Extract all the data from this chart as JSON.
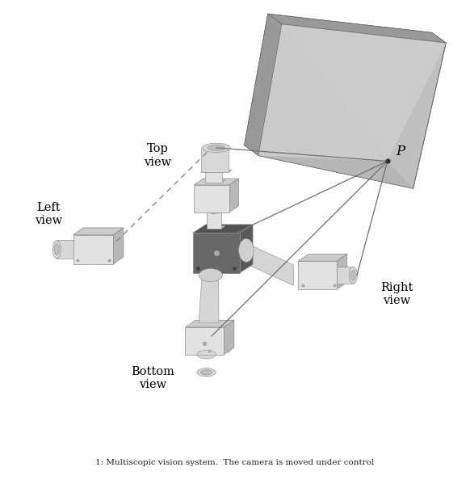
{
  "background_color": "#ffffff",
  "figure_size": [
    5.82,
    5.94
  ],
  "dpi": 100,
  "label_top": "Top\nview",
  "label_left": "Left\nview",
  "label_right": "Right\nview",
  "label_bottom": "Bottom\nview",
  "label_P": "P",
  "text_color": "#000000",
  "caption": "1: Multiscopic vision system.  The camera is moved under control",
  "plane_front_color": "#b8b8b8",
  "plane_top_color": "#888888",
  "plane_right_color": "#999999",
  "plane_shadow_color": "#cccccc",
  "camera_front": "#e2e2e2",
  "camera_top": "#cccccc",
  "camera_side": "#b8b8b8",
  "camera_dark_front": "#707070",
  "camera_dark_top": "#555555",
  "camera_dark_side": "#606060",
  "lens_outer": "#d8d8d8",
  "lens_inner": "#c0c0c0",
  "line_solid": "#707070",
  "line_dashed": "#888888"
}
